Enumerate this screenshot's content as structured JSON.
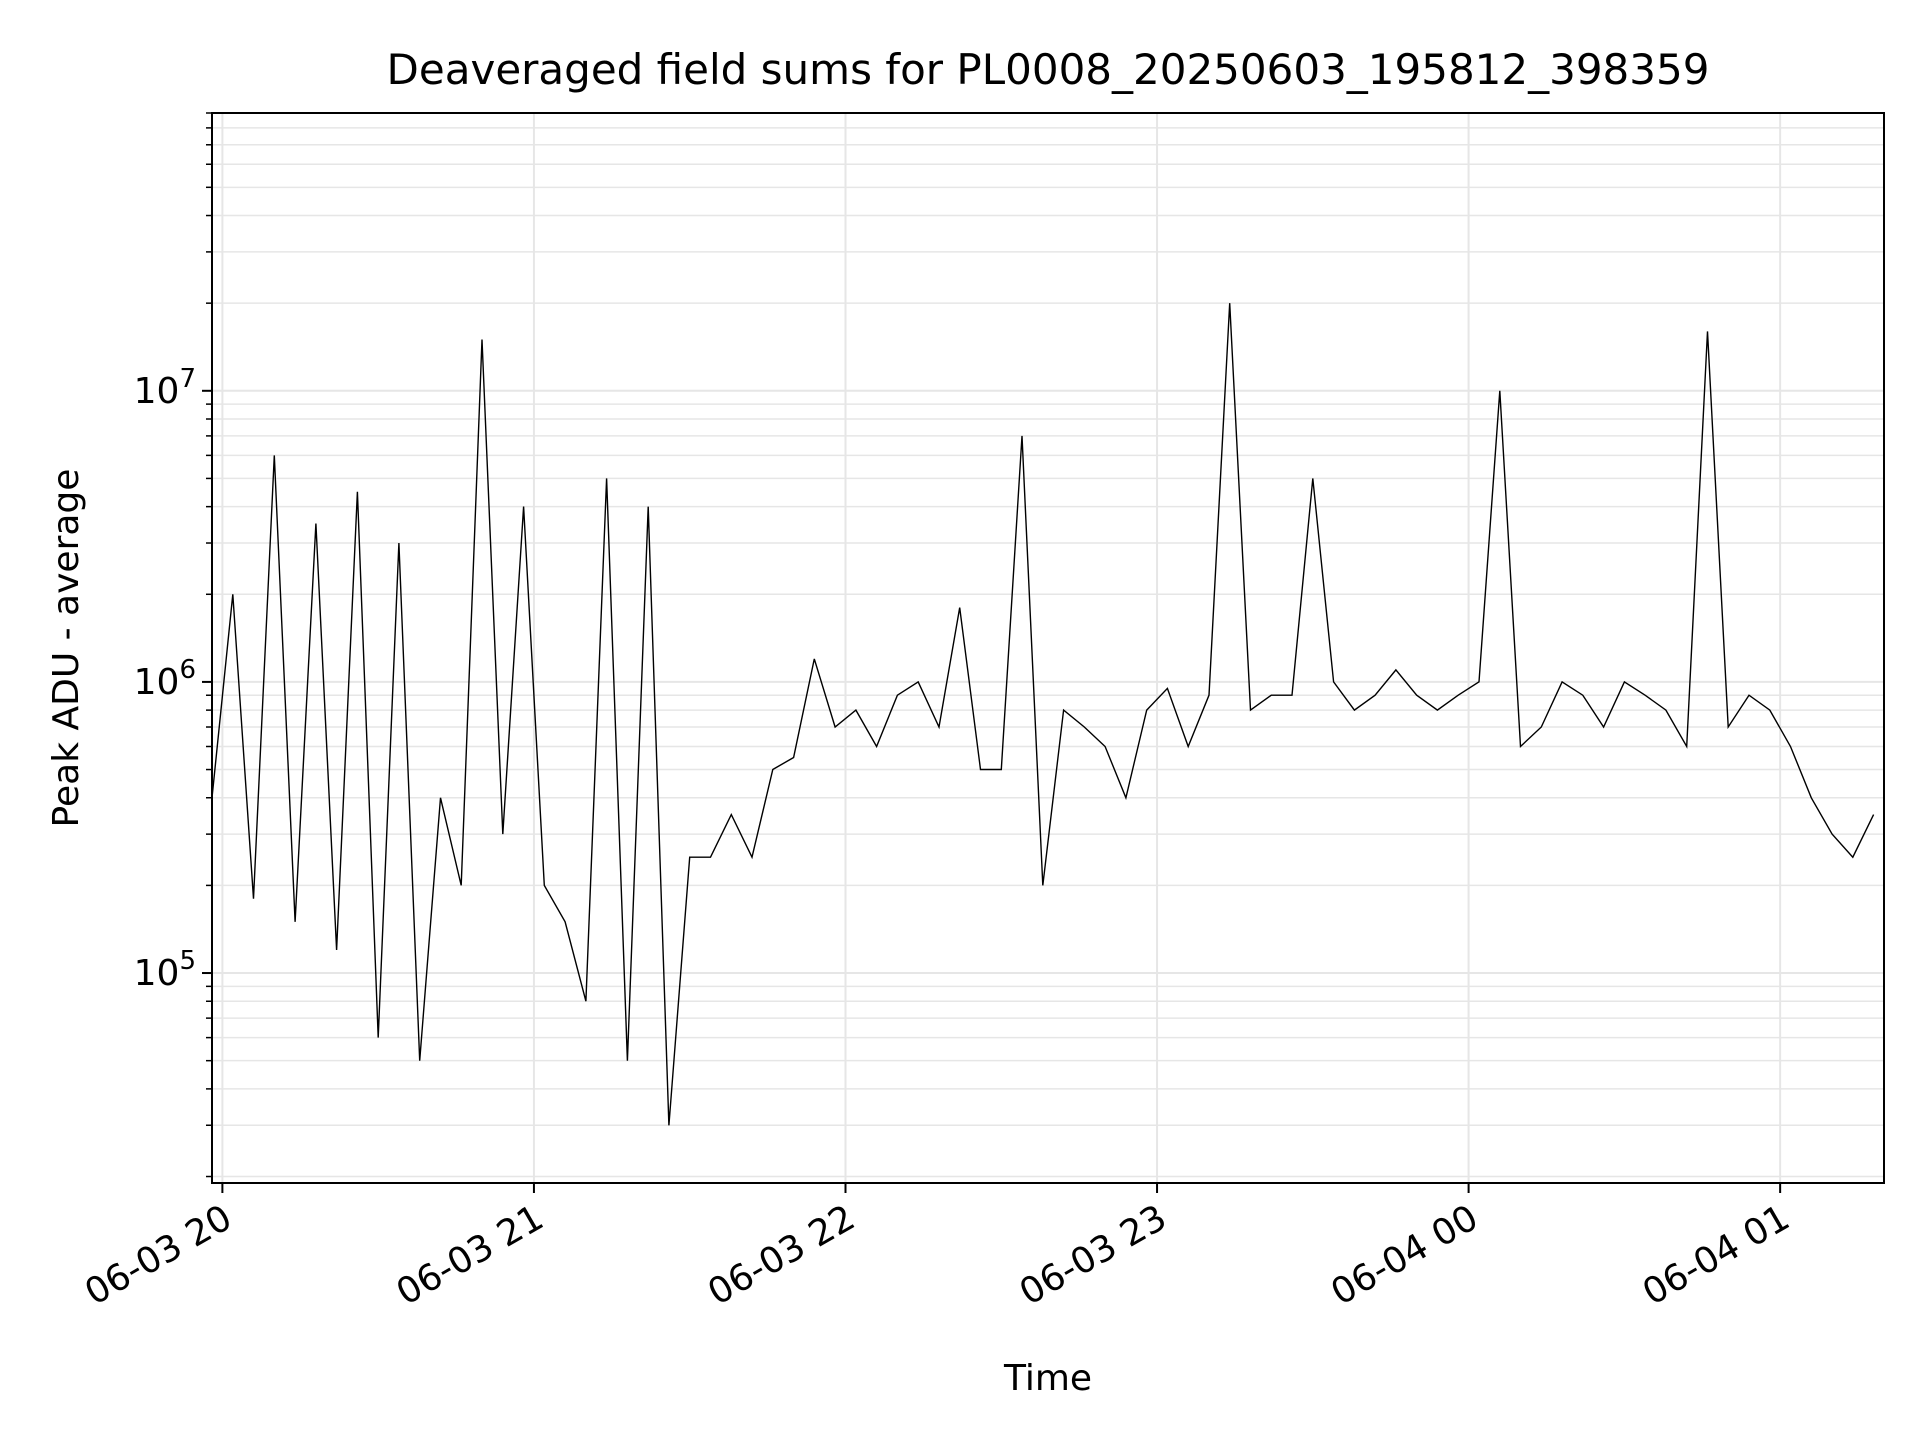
{
  "chart_data": {
    "type": "line",
    "title": "Deaveraged field sums for PL0008_20250603_195812_398359",
    "xlabel": "Time",
    "ylabel": "Peak ADU - average",
    "yscale": "log",
    "ylim": [
      19000,
      90000000
    ],
    "xlim": [
      "2025-06-03 19:58",
      "2025-06-04 01:20"
    ],
    "grid": true,
    "legend": "none",
    "line_color": "#000000",
    "x_ticks": [
      {
        "t": "2025-06-03 20:00",
        "label": "06-03 20"
      },
      {
        "t": "2025-06-03 21:00",
        "label": "06-03 21"
      },
      {
        "t": "2025-06-03 22:00",
        "label": "06-03 22"
      },
      {
        "t": "2025-06-03 23:00",
        "label": "06-03 23"
      },
      {
        "t": "2025-06-04 00:00",
        "label": "06-04 00"
      },
      {
        "t": "2025-06-04 01:00",
        "label": "06-04 01"
      }
    ],
    "y_ticks": [
      {
        "v": 100000,
        "base": "10",
        "exp": "5"
      },
      {
        "v": 1000000,
        "base": "10",
        "exp": "6"
      },
      {
        "v": 10000000,
        "base": "10",
        "exp": "7"
      }
    ],
    "x": [
      "2025-06-03 19:58",
      "2025-06-03 20:02",
      "2025-06-03 20:06",
      "2025-06-03 20:10",
      "2025-06-03 20:14",
      "2025-06-03 20:18",
      "2025-06-03 20:22",
      "2025-06-03 20:26",
      "2025-06-03 20:30",
      "2025-06-03 20:34",
      "2025-06-03 20:38",
      "2025-06-03 20:42",
      "2025-06-03 20:46",
      "2025-06-03 20:50",
      "2025-06-03 20:54",
      "2025-06-03 20:58",
      "2025-06-03 21:02",
      "2025-06-03 21:06",
      "2025-06-03 21:10",
      "2025-06-03 21:14",
      "2025-06-03 21:18",
      "2025-06-03 21:22",
      "2025-06-03 21:26",
      "2025-06-03 21:30",
      "2025-06-03 21:34",
      "2025-06-03 21:38",
      "2025-06-03 21:42",
      "2025-06-03 21:46",
      "2025-06-03 21:50",
      "2025-06-03 21:54",
      "2025-06-03 21:58",
      "2025-06-03 22:02",
      "2025-06-03 22:06",
      "2025-06-03 22:10",
      "2025-06-03 22:14",
      "2025-06-03 22:18",
      "2025-06-03 22:22",
      "2025-06-03 22:26",
      "2025-06-03 22:30",
      "2025-06-03 22:34",
      "2025-06-03 22:38",
      "2025-06-03 22:42",
      "2025-06-03 22:46",
      "2025-06-03 22:50",
      "2025-06-03 22:54",
      "2025-06-03 22:58",
      "2025-06-03 23:02",
      "2025-06-03 23:06",
      "2025-06-03 23:10",
      "2025-06-03 23:14",
      "2025-06-03 23:18",
      "2025-06-03 23:22",
      "2025-06-03 23:26",
      "2025-06-03 23:30",
      "2025-06-03 23:34",
      "2025-06-03 23:38",
      "2025-06-03 23:42",
      "2025-06-03 23:46",
      "2025-06-03 23:50",
      "2025-06-03 23:54",
      "2025-06-03 23:58",
      "2025-06-04 00:02",
      "2025-06-04 00:06",
      "2025-06-04 00:10",
      "2025-06-04 00:14",
      "2025-06-04 00:18",
      "2025-06-04 00:22",
      "2025-06-04 00:26",
      "2025-06-04 00:30",
      "2025-06-04 00:34",
      "2025-06-04 00:38",
      "2025-06-04 00:42",
      "2025-06-04 00:46",
      "2025-06-04 00:50",
      "2025-06-04 00:54",
      "2025-06-04 00:58",
      "2025-06-04 01:02",
      "2025-06-04 01:06",
      "2025-06-04 01:10",
      "2025-06-04 01:14",
      "2025-06-04 01:18"
    ],
    "series": [
      {
        "values": [
          400000,
          2000000,
          180000,
          6000000,
          150000,
          3500000,
          120000,
          4500000,
          60000,
          3000000,
          50000,
          400000,
          200000,
          15000000,
          300000,
          4000000,
          200000,
          150000,
          80000,
          5000000,
          50000,
          4000000,
          30000,
          250000,
          250000,
          350000,
          250000,
          500000,
          550000,
          1200000,
          700000,
          800000,
          600000,
          900000,
          1000000,
          700000,
          1800000,
          500000,
          500000,
          7000000,
          200000,
          800000,
          700000,
          600000,
          400000,
          800000,
          950000,
          600000,
          900000,
          20000000,
          800000,
          900000,
          900000,
          5000000,
          1000000,
          800000,
          900000,
          1100000,
          900000,
          800000,
          900000,
          1000000,
          10000000,
          600000,
          700000,
          1000000,
          900000,
          700000,
          1000000,
          900000,
          800000,
          600000,
          16000000,
          700000,
          900000,
          800000,
          600000,
          400000,
          300000,
          250000,
          350000
        ]
      }
    ]
  }
}
